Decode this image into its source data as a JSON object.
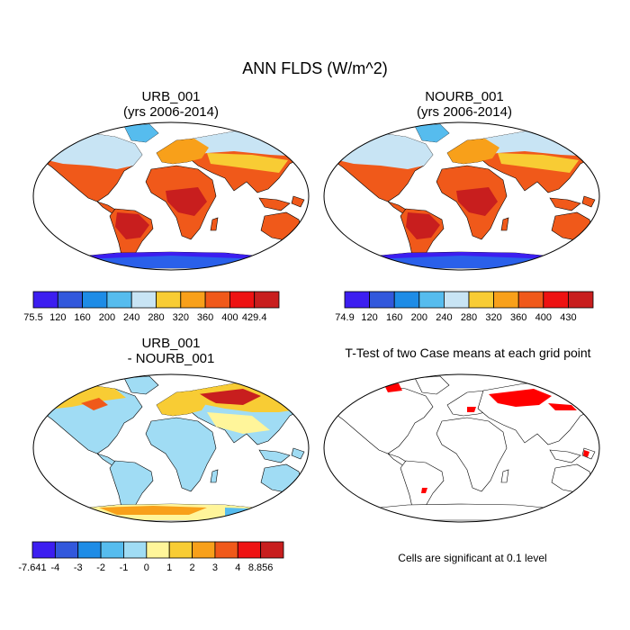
{
  "title": "ANN FLDS (W/m^2)",
  "panels": [
    {
      "id": "urb",
      "title_line1": "URB_001",
      "title_line2": "(yrs 2006-2014)",
      "colorbar": {
        "ticks": [
          "75.5",
          "120",
          "160",
          "200",
          "240",
          "280",
          "320",
          "360",
          "400",
          "429.4"
        ],
        "colors": [
          "#3c1ef0",
          "#3258dc",
          "#1e8ce6",
          "#56bcee",
          "#c8e4f4",
          "#f8cc34",
          "#f8a01a",
          "#f0591a",
          "#ee1212",
          "#c81e1e"
        ]
      }
    },
    {
      "id": "nourb",
      "title_line1": "NOURB_001",
      "title_line2": "(yrs 2006-2014)",
      "colorbar": {
        "ticks": [
          "74.9",
          "120",
          "160",
          "200",
          "240",
          "280",
          "320",
          "360",
          "400",
          "430"
        ],
        "colors": [
          "#3c1ef0",
          "#3258dc",
          "#1e8ce6",
          "#56bcee",
          "#c8e4f4",
          "#f8cc34",
          "#f8a01a",
          "#f0591a",
          "#ee1212",
          "#c81e1e"
        ]
      }
    },
    {
      "id": "diff",
      "title_line1": "URB_001",
      "title_line2": "- NOURB_001",
      "colorbar": {
        "ticks": [
          "-7.641",
          "-4",
          "-3",
          "-2",
          "-1",
          "0",
          "1",
          "2",
          "3",
          "4",
          "8.856"
        ],
        "colors": [
          "#3c1ef0",
          "#3258dc",
          "#1e8ce6",
          "#56bcee",
          "#a0dcf4",
          "#fff59a",
          "#f8cc34",
          "#f8a01a",
          "#f0591a",
          "#ee1212",
          "#c81e1e"
        ]
      }
    },
    {
      "id": "ttest",
      "title_line1": "T-Test of two Case means at each grid point",
      "title_line2": "",
      "note": "Cells are significant at 0.1 level",
      "significant_color": "#ff0000"
    }
  ]
}
